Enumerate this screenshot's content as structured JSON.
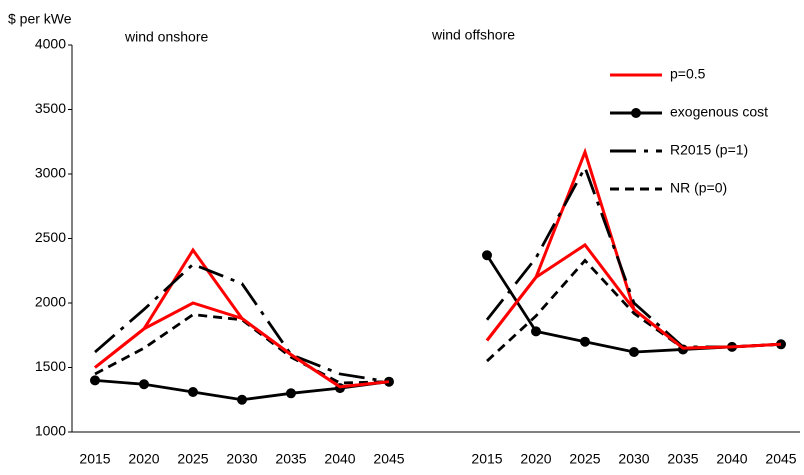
{
  "chart_data": {
    "type": "line",
    "y_label": "$ per kWe",
    "annotations": [
      "wind onshore",
      "wind offshore"
    ],
    "categories": [
      "2015",
      "2020",
      "2025",
      "2030",
      "2035",
      "2040",
      "2045",
      null,
      "2015",
      "2020",
      "2025",
      "2030",
      "2035",
      "2040",
      "2045"
    ],
    "ylim": [
      1000,
      4000
    ],
    "yticks": [
      1000,
      1500,
      2000,
      2500,
      3000,
      3500,
      4000
    ],
    "legend": "top-right",
    "series": [
      {
        "name": "p=0.5",
        "color": "#ff0000",
        "style": "solid",
        "values": [
          1500,
          1800,
          2410,
          1880,
          1600,
          1350,
          1390,
          null,
          1710,
          2200,
          3170,
          1950,
          1650,
          1660,
          1680
        ]
      },
      {
        "name": "exogenous cost",
        "color": "#000000",
        "style": "marker",
        "values": [
          1400,
          1370,
          1310,
          1250,
          1300,
          1340,
          1390,
          null,
          2370,
          1780,
          1700,
          1620,
          1640,
          1660,
          1680
        ]
      },
      {
        "name": "R2015 (p=1)",
        "color": "#000000",
        "style": "long-dash",
        "values": [
          1620,
          1950,
          2300,
          2150,
          1600,
          1450,
          1390,
          null,
          1870,
          2350,
          3050,
          2000,
          1660,
          1660,
          1680
        ]
      },
      {
        "name": "NR (p=0)",
        "color": "#000000",
        "style": "short-dash",
        "values": [
          1450,
          1650,
          1910,
          1870,
          1580,
          1380,
          1390,
          null,
          1550,
          1900,
          2330,
          1920,
          1650,
          1660,
          1680
        ]
      },
      {
        "color": "#ff0000",
        "style": "solid",
        "values": [
          1500,
          1800,
          2000,
          1880,
          1600,
          1350,
          1390,
          null,
          1710,
          2200,
          2450,
          1950,
          1650,
          1660,
          1680
        ]
      }
    ]
  }
}
